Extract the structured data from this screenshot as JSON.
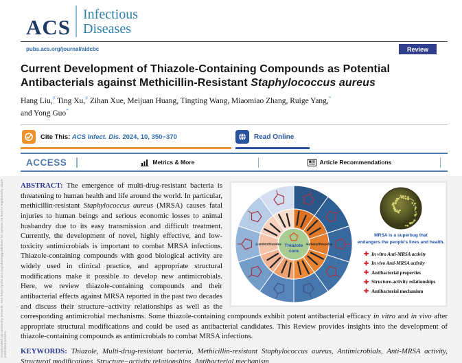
{
  "journal": {
    "acs": "ACS",
    "name_line1": "Infectious",
    "name_line2": "Diseases",
    "url": "pubs.acs.org/journal/aidcbc",
    "badge": "Review"
  },
  "side_note": "Downloaded via university network. See https://pubs.acs.org/sharingguidelines for options on how to legitimately share published articles.",
  "article": {
    "title_prefix": "Current Development of Thiazole-Containing Compounds as Potential Antibacterials against Methicillin-Resistant ",
    "title_italic": "Staphylococcus aureus",
    "author_segments": [
      {
        "t": "Hang Liu,",
        "s": "#"
      },
      {
        "t": " Ting Xu,",
        "s": "#"
      },
      {
        "t": " Zihan Xue, Meijuan Huang, Tingting Wang, Miaomiao Zhang, Ruige Yang,",
        "s": "*"
      },
      {
        "t": "and Yong Guo",
        "s": "*",
        "br": true
      }
    ]
  },
  "cite_bar": {
    "cite_label": "Cite This:",
    "citation_journal": "ACS Infect. Dis.",
    "citation_rest": "2024, 10, 350−370",
    "read_online_label": "Read Online"
  },
  "access_row": {
    "access": "ACCESS",
    "metrics": "Metrics & More",
    "recommendations": "Article Recommendations"
  },
  "abstract": {
    "label": "ABSTRACT:",
    "segments": [
      {
        "t": " The emergence of multi-drug-resistant bacteria is threatening to human health and life around the world. In particular, methicillin-resistant ",
        "i": false
      },
      {
        "t": "Staphylococcus aureus",
        "i": true
      },
      {
        "t": " (MRSA) causes fatal injuries to human beings and serious economic losses to animal husbandry due to its easy transmission and difficult treatment. Currently, the development of novel, highly effective, and low-toxicity antimicrobials is important to combat MRSA infections. Thiazole-containing compounds with good biological activity are widely used in clinical practice, and appropriate structural modifications make it possible to develop new antimicrobials. Here, we review thiazole-containing compounds and their antibacterial effects against MRSA reported in the past two decades and discuss their structure−activity relationships as well as the corresponding antimicrobial mechanisms. Some thiazole-containing compounds exhibit potent antibacterial efficacy ",
        "i": false
      },
      {
        "t": "in vitro",
        "i": true
      },
      {
        "t": " and ",
        "i": false
      },
      {
        "t": "in vivo",
        "i": true
      },
      {
        "t": " after appropriate structural modifications and could be used as antibacterial candidates. This Review provides insights into the development of thiazole-containing compounds as antimicrobials to combat MRSA infections.",
        "i": false
      }
    ]
  },
  "figure": {
    "wheel": {
      "center_label_line1": "Thiazole",
      "center_label_line2": "core",
      "center_fill": "#a8cc92",
      "center_text_color": "#1d4fa8",
      "left_label": "2-aminothiazoles",
      "right_label": "4-phenylthiazoles",
      "outer_colors": [
        "#2a5788",
        "#2f6094",
        "#38699e",
        "#3f71a7",
        "#4678ae",
        "#5886ba",
        "#739cc9",
        "#93b4d8",
        "#b7cde7",
        "#d3dff0"
      ],
      "inner_colors": [
        "#dd7226",
        "#e07829",
        "#e37e2e",
        "#e78434",
        "#ea8a3a",
        "#eea06f",
        "#f2b493",
        "#f5c3aa",
        "#f8d0bc",
        "#fadccb"
      ],
      "glyph_colors": [
        "#a63446",
        "#a63446",
        "#a63446",
        "#a63446",
        "#3c4f8c",
        "#3c4f8c",
        "#a63446",
        "#a63446",
        "#a63446",
        "#a63446"
      ]
    },
    "mrsa_caption_line1": "MRSA is a superbug that",
    "mrsa_caption_line2": "endangers the people’s lives and health.",
    "plus_glyph": "✚",
    "checklist": [
      "In vitro Anti-MRSA activity",
      "In vivo Anti-MRSA activity",
      "Antibacterial properties",
      "Structure-activity relationships",
      "Antibacterial mechanism"
    ]
  },
  "keywords": {
    "label": "KEYWORDS:",
    "text": "Thiazole, Multi-drug-resistant bacteria, Methicillin-resistant Staphylococcus aureus, Antimicrobials, Anti-MRSA activity, Structural modifications, Structure−activity relationships, Antibacterial mechanism"
  },
  "colors": {
    "accent_orange": "#f0922b",
    "badge_navy": "#323f8e",
    "rule_blue": "#4e7cac",
    "link_blue": "#2a6bb0",
    "label_navy": "#2b3990",
    "read_online_navy": "#28539c",
    "cross_red": "#d1232a"
  }
}
